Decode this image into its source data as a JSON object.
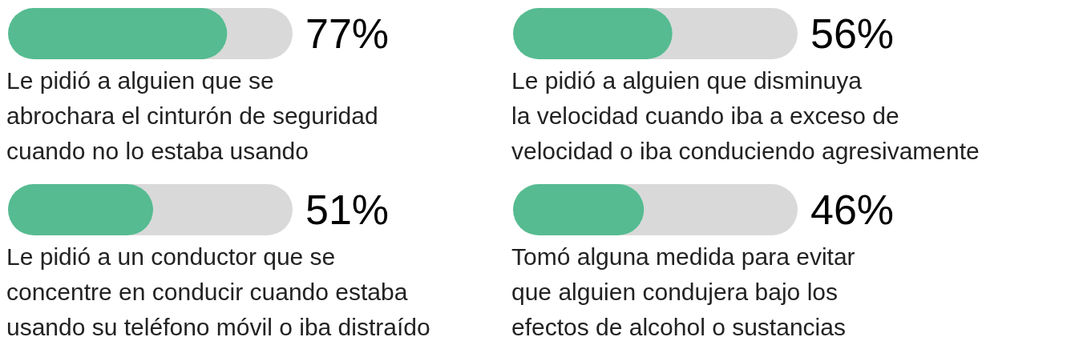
{
  "chart_data": [
    {
      "type": "bar",
      "orientation": "horizontal",
      "categories": [
        "Le pidió a alguien que se abrochara el cinturón de seguridad cuando no lo estaba usando",
        "Le pidió a un conductor que se concentre en conducir cuando estaba usando su teléfono móvil o iba distraído"
      ],
      "values": [
        77,
        51
      ],
      "value_labels": [
        "77%",
        "51%"
      ],
      "color": "#56bb91",
      "xlim": [
        0,
        100
      ]
    },
    {
      "type": "bar",
      "orientation": "horizontal",
      "categories": [
        "Le pidió a alguien que disminuya la velocidad cuando iba a exceso de velocidad o iba conduciendo agresivamente",
        "Tomó alguna medida para evitar que alguien condujera bajo los efectos de alcohol o sustancias"
      ],
      "values": [
        56,
        46
      ],
      "value_labels": [
        "56%",
        "46%"
      ],
      "color": "#56bb91",
      "xlim": [
        0,
        100
      ]
    }
  ]
}
